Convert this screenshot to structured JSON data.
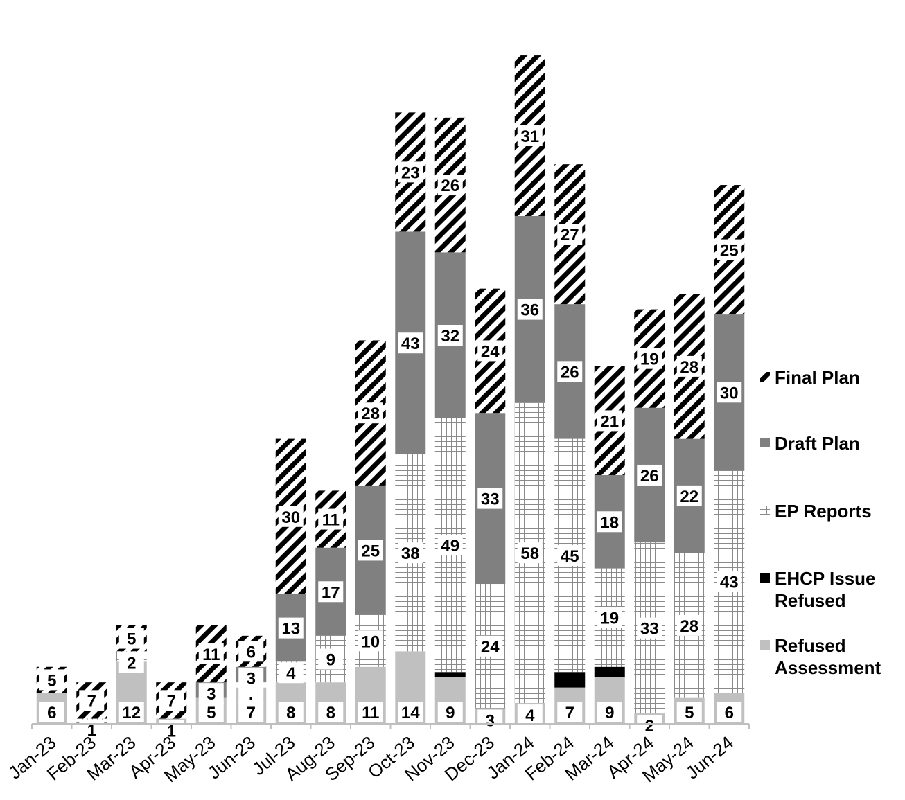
{
  "chart_data": {
    "type": "bar",
    "stacked": true,
    "categories": [
      "Jan-23",
      "Feb-23",
      "Mar-23",
      "Apr-23",
      "May-23",
      "Jun-23",
      "Jul-23",
      "Aug-23",
      "Sep-23",
      "Oct-23",
      "Nov-23",
      "Dec-23",
      "Jan-24",
      "Feb-24",
      "Mar-24",
      "Apr-24",
      "May-24",
      "Jun-24"
    ],
    "series": [
      {
        "name": "Refused Assessment",
        "values": [
          6,
          0,
          12,
          1,
          5,
          7,
          8,
          8,
          11,
          14,
          9,
          3,
          4,
          7,
          9,
          2,
          5,
          6
        ],
        "color": "#c0c0c0",
        "pattern": "solid"
      },
      {
        "name": "EHCP Issue Refused",
        "values": [
          0,
          0,
          0,
          0,
          0,
          0,
          0,
          0,
          0,
          0,
          1,
          0,
          0,
          3,
          2,
          0,
          0,
          0
        ],
        "color": "#000000",
        "pattern": "solid"
      },
      {
        "name": "EP Reports",
        "values": [
          0,
          1,
          2,
          0,
          0,
          1,
          4,
          9,
          10,
          38,
          49,
          24,
          58,
          45,
          19,
          33,
          28,
          43
        ],
        "color": "#808080",
        "pattern": "grid"
      },
      {
        "name": "Draft Plan",
        "values": [
          0,
          0,
          0,
          0,
          3,
          3,
          13,
          17,
          25,
          43,
          32,
          33,
          36,
          26,
          18,
          26,
          22,
          30
        ],
        "color": "#808080",
        "pattern": "solid"
      },
      {
        "name": "Final Plan",
        "values": [
          5,
          7,
          5,
          7,
          11,
          6,
          30,
          11,
          28,
          23,
          26,
          24,
          31,
          27,
          21,
          19,
          28,
          25
        ],
        "color": "#000000",
        "pattern": "diagonal"
      }
    ],
    "labels": [
      [
        "6",
        "5"
      ],
      [
        "1",
        "7"
      ],
      [
        "12",
        "2",
        "5"
      ],
      [
        "1",
        "7"
      ],
      [
        "5",
        "3",
        "11"
      ],
      [
        "7",
        ".",
        "3",
        "6"
      ],
      [
        "8",
        "4",
        "13",
        "30"
      ],
      [
        "8",
        "9",
        "17",
        "11"
      ],
      [
        "11",
        "10",
        "25",
        "28"
      ],
      [
        "14",
        "38",
        "43",
        "23"
      ],
      [
        "9",
        "49",
        "32",
        "26"
      ],
      [
        "3",
        "24",
        "33",
        "24"
      ],
      [
        "4",
        "58",
        "36",
        "31"
      ],
      [
        "7",
        "45",
        "26",
        "27"
      ],
      [
        "9",
        "19",
        "18",
        "21"
      ],
      [
        "2",
        "33",
        "26",
        "19"
      ],
      [
        "5",
        "28",
        "22",
        "28"
      ],
      [
        "6",
        "43",
        "30",
        "25"
      ]
    ],
    "legend_position": "right",
    "legend_order": [
      "Final Plan",
      "Draft Plan",
      "EP Reports",
      "EHCP Issue Refused",
      "Refused Assessment"
    ],
    "ylim": [
      0,
      140
    ],
    "grid": false,
    "title": "",
    "xlabel": "",
    "ylabel": ""
  }
}
